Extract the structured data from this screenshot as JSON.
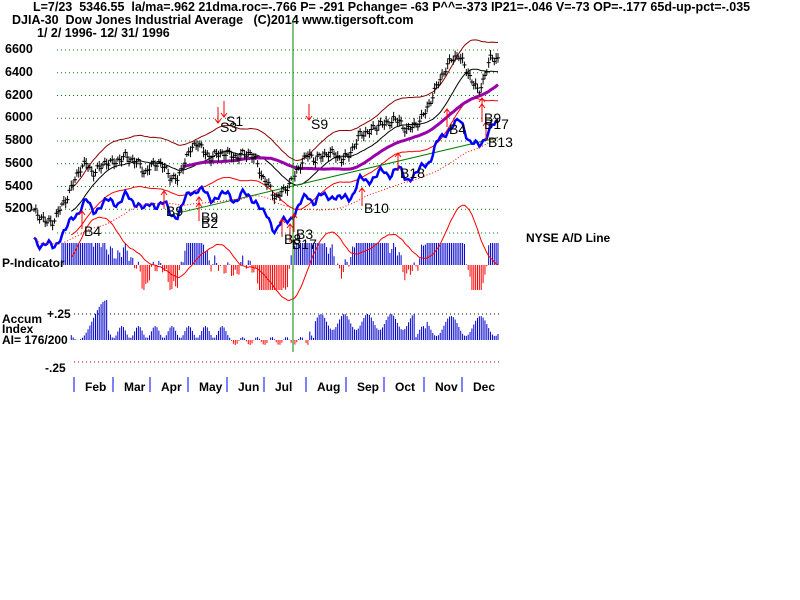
{
  "header": {
    "line1": "L=7/23  5346.55  la/ma=.962 21dma.roc=-.766 P= -291 Pchange= -63 P^^=-373 IP21=-.046 V=-73 OP=-.177 65d-up-pct=-.035",
    "line2": "DJIA-30  Dow Jones Industrial Average   (C)2014 www.tigersoft.com",
    "line3": "1/ 2/ 1996- 12/ 31/ 1996"
  },
  "labels": {
    "p_indicator": "P-Indicator",
    "ad_line": "NYSE A/D Line",
    "accum": "Accum",
    "index": "Index",
    "ai": "AI= 176/200",
    "plus25": "+.25",
    "minus25": "-.25"
  },
  "colors": {
    "grid_green": "#008000",
    "band_red": "#8b0000",
    "ad_blue": "#0000ff",
    "signal_red": "#ff0000",
    "ma_purple": "#9900aa",
    "pos_bar": "#0000cc",
    "neg_bar": "#ff0000",
    "cursor": "#008000"
  },
  "chart_data": {
    "type": "line",
    "title": "DJIA-30 Dow Jones Industrial Average",
    "subtitle": "1/2/1996 - 12/31/1996",
    "y_ticks": [
      6600,
      6400,
      6200,
      6000,
      5800,
      5600,
      5400,
      5200
    ],
    "ylim": [
      5050,
      6650
    ],
    "months": [
      "Feb",
      "Mar",
      "Apr",
      "May",
      "Jun",
      "Jul",
      "Aug",
      "Sep",
      "Oct",
      "Nov",
      "Dec"
    ],
    "cursor_date": "7/23",
    "cursor_value": 5346.55,
    "price_close_approx": [
      5180,
      5140,
      5080,
      5100,
      5200,
      5300,
      5420,
      5560,
      5600,
      5520,
      5560,
      5620,
      5600,
      5640,
      5660,
      5640,
      5600,
      5520,
      5580,
      5620,
      5560,
      5480,
      5460,
      5620,
      5720,
      5800,
      5700,
      5660,
      5680,
      5700,
      5680,
      5660,
      5680,
      5700,
      5620,
      5480,
      5400,
      5300,
      5346,
      5420,
      5500,
      5620,
      5680,
      5640,
      5660,
      5700,
      5680,
      5640,
      5660,
      5760,
      5860,
      5880,
      5900,
      5960,
      5940,
      6000,
      5960,
      5900,
      5920,
      5980,
      6060,
      6200,
      6320,
      6440,
      6520,
      6560,
      6440,
      6340,
      6220,
      6380,
      6540,
      6520
    ],
    "series": [
      {
        "name": "DJIA price (daily bars)",
        "color": "#000000"
      },
      {
        "name": "Upper band",
        "color": "#8b0000"
      },
      {
        "name": "Lower band",
        "color": "#ff0000"
      },
      {
        "name": "21-day MA",
        "color": "#000000"
      },
      {
        "name": "50-day MA",
        "color": "#9900aa"
      },
      {
        "name": "200-day MA",
        "color": "#008000"
      },
      {
        "name": "NYSE A/D Line",
        "color": "#0000ff"
      },
      {
        "name": "P-Indicator",
        "color": "#0000cc"
      },
      {
        "name": "Accum Index",
        "color": "#0000cc"
      }
    ],
    "signals": [
      {
        "label": "B4",
        "type": "buy",
        "month": "Feb"
      },
      {
        "label": "B9",
        "type": "buy",
        "month": "Apr"
      },
      {
        "label": "B9",
        "type": "buy",
        "month": "May"
      },
      {
        "label": "B2",
        "type": "buy",
        "month": "May"
      },
      {
        "label": "S1",
        "type": "sell",
        "month": "May"
      },
      {
        "label": "S3",
        "type": "sell",
        "month": "May"
      },
      {
        "label": "B3",
        "type": "buy",
        "month": "Jul"
      },
      {
        "label": "B8",
        "type": "buy",
        "month": "Jul"
      },
      {
        "label": "B17",
        "type": "buy",
        "month": "Jul"
      },
      {
        "label": "S9",
        "type": "sell",
        "month": "Aug"
      },
      {
        "label": "B10",
        "type": "buy",
        "month": "Sep"
      },
      {
        "label": "B18",
        "type": "buy",
        "month": "Sep"
      },
      {
        "label": "B4",
        "type": "buy",
        "month": "Nov"
      },
      {
        "label": "B9",
        "type": "buy",
        "month": "Dec"
      },
      {
        "label": "B17",
        "type": "buy",
        "month": "Dec"
      },
      {
        "label": "B13",
        "type": "buy",
        "month": "Dec"
      }
    ],
    "accum_index_ticks": [
      "+.25",
      "-.25"
    ],
    "accum_index_value": "176/200",
    "grid": true,
    "legend_position": "inline labels"
  }
}
